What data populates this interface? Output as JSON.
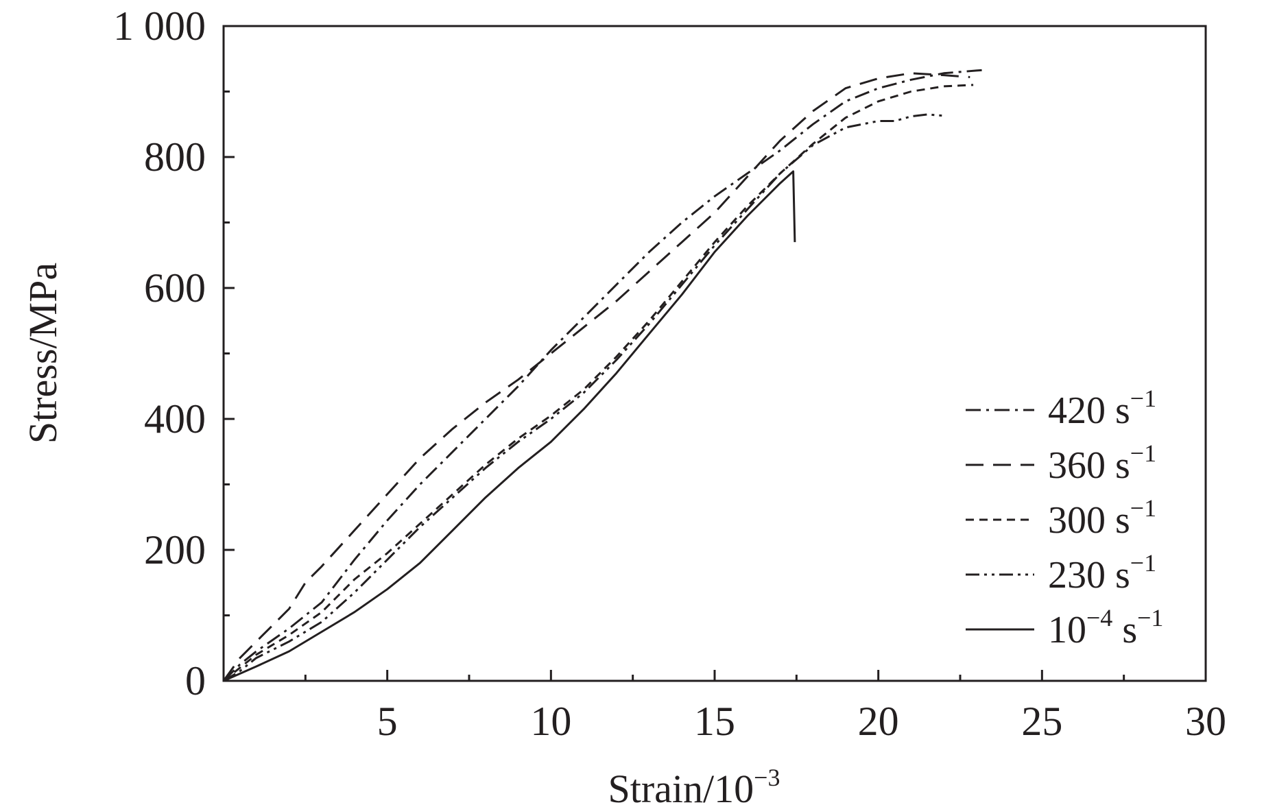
{
  "chart_data": {
    "type": "line",
    "xlabel": "Strain/10",
    "xlabel_exponent": "−3",
    "ylabel": "Stress/MPa",
    "xlim": [
      0,
      30
    ],
    "ylim": [
      0,
      1000
    ],
    "x_ticks": [
      {
        "value": 5,
        "label": "5"
      },
      {
        "value": 10,
        "label": "10"
      },
      {
        "value": 15,
        "label": "15"
      },
      {
        "value": 20,
        "label": "20"
      },
      {
        "value": 25,
        "label": "25"
      },
      {
        "value": 30,
        "label": "30"
      }
    ],
    "y_ticks": [
      {
        "value": 0,
        "label": "0"
      },
      {
        "value": 200,
        "label": "200"
      },
      {
        "value": 400,
        "label": "400"
      },
      {
        "value": 600,
        "label": "600"
      },
      {
        "value": 800,
        "label": "800"
      },
      {
        "value": 1000,
        "label": "1 000"
      }
    ],
    "grid": false,
    "legend_position": "bottom-right",
    "line_color": "#231f20",
    "series": [
      {
        "name": "420 s",
        "name_exponent": "−1",
        "dash": "dash-dot",
        "points": [
          [
            0,
            0
          ],
          [
            0.5,
            25
          ],
          [
            1,
            45
          ],
          [
            2,
            80
          ],
          [
            3,
            120
          ],
          [
            4,
            185
          ],
          [
            5,
            245
          ],
          [
            6,
            300
          ],
          [
            7,
            350
          ],
          [
            8,
            400
          ],
          [
            9,
            450
          ],
          [
            10,
            505
          ],
          [
            11,
            555
          ],
          [
            12,
            605
          ],
          [
            13,
            655
          ],
          [
            14,
            700
          ],
          [
            15,
            740
          ],
          [
            16,
            775
          ],
          [
            17,
            810
          ],
          [
            18,
            850
          ],
          [
            19,
            885
          ],
          [
            20,
            905
          ],
          [
            21,
            918
          ],
          [
            22,
            928
          ],
          [
            23,
            932
          ],
          [
            23.3,
            933
          ]
        ]
      },
      {
        "name": "360 s",
        "name_exponent": "−1",
        "dash": "dash",
        "points": [
          [
            0,
            0
          ],
          [
            0.5,
            35
          ],
          [
            1,
            60
          ],
          [
            2,
            110
          ],
          [
            2.5,
            150
          ],
          [
            3,
            175
          ],
          [
            4,
            230
          ],
          [
            5,
            285
          ],
          [
            6,
            340
          ],
          [
            7,
            385
          ],
          [
            8,
            425
          ],
          [
            9,
            460
          ],
          [
            10,
            500
          ],
          [
            11,
            540
          ],
          [
            12,
            580
          ],
          [
            13,
            625
          ],
          [
            14,
            670
          ],
          [
            15,
            715
          ],
          [
            16,
            770
          ],
          [
            17,
            825
          ],
          [
            18,
            870
          ],
          [
            19,
            905
          ],
          [
            20,
            920
          ],
          [
            21,
            928
          ],
          [
            22,
            925
          ],
          [
            22.8,
            922
          ]
        ]
      },
      {
        "name": "300 s",
        "name_exponent": "−1",
        "dash": "short-dash",
        "points": [
          [
            0,
            0
          ],
          [
            0.5,
            20
          ],
          [
            1,
            40
          ],
          [
            2,
            70
          ],
          [
            3,
            105
          ],
          [
            4,
            155
          ],
          [
            5,
            195
          ],
          [
            6,
            240
          ],
          [
            7,
            285
          ],
          [
            8,
            330
          ],
          [
            9,
            370
          ],
          [
            10,
            405
          ],
          [
            11,
            445
          ],
          [
            12,
            495
          ],
          [
            13,
            550
          ],
          [
            14,
            610
          ],
          [
            15,
            670
          ],
          [
            16,
            725
          ],
          [
            17,
            775
          ],
          [
            18,
            820
          ],
          [
            19,
            860
          ],
          [
            20,
            885
          ],
          [
            21,
            900
          ],
          [
            22,
            908
          ],
          [
            22.9,
            910
          ]
        ]
      },
      {
        "name": "230 s",
        "name_exponent": "−1",
        "dash": "dash-dot-dot",
        "points": [
          [
            0,
            0
          ],
          [
            0.5,
            15
          ],
          [
            1,
            35
          ],
          [
            2,
            60
          ],
          [
            3,
            90
          ],
          [
            4,
            135
          ],
          [
            5,
            185
          ],
          [
            6,
            235
          ],
          [
            7,
            280
          ],
          [
            8,
            325
          ],
          [
            9,
            365
          ],
          [
            10,
            400
          ],
          [
            11,
            440
          ],
          [
            12,
            490
          ],
          [
            13,
            545
          ],
          [
            14,
            605
          ],
          [
            15,
            665
          ],
          [
            16,
            720
          ],
          [
            17,
            775
          ],
          [
            18,
            818
          ],
          [
            19,
            845
          ],
          [
            20,
            855
          ],
          [
            20.5,
            855
          ],
          [
            21,
            862
          ],
          [
            21.5,
            865
          ],
          [
            22,
            863
          ]
        ]
      },
      {
        "name": "10",
        "name_exponent": "−4",
        "name_suffix": " s",
        "name_suffix_exponent": "−1",
        "dash": "solid",
        "points": [
          [
            0,
            0
          ],
          [
            1,
            22
          ],
          [
            2,
            45
          ],
          [
            3,
            75
          ],
          [
            4,
            105
          ],
          [
            5,
            140
          ],
          [
            6,
            180
          ],
          [
            7,
            230
          ],
          [
            8,
            280
          ],
          [
            9,
            325
          ],
          [
            10,
            365
          ],
          [
            11,
            415
          ],
          [
            12,
            470
          ],
          [
            13,
            530
          ],
          [
            14,
            590
          ],
          [
            15,
            655
          ],
          [
            16,
            710
          ],
          [
            17,
            760
          ],
          [
            17.4,
            778
          ],
          [
            17.45,
            670
          ]
        ]
      }
    ]
  }
}
